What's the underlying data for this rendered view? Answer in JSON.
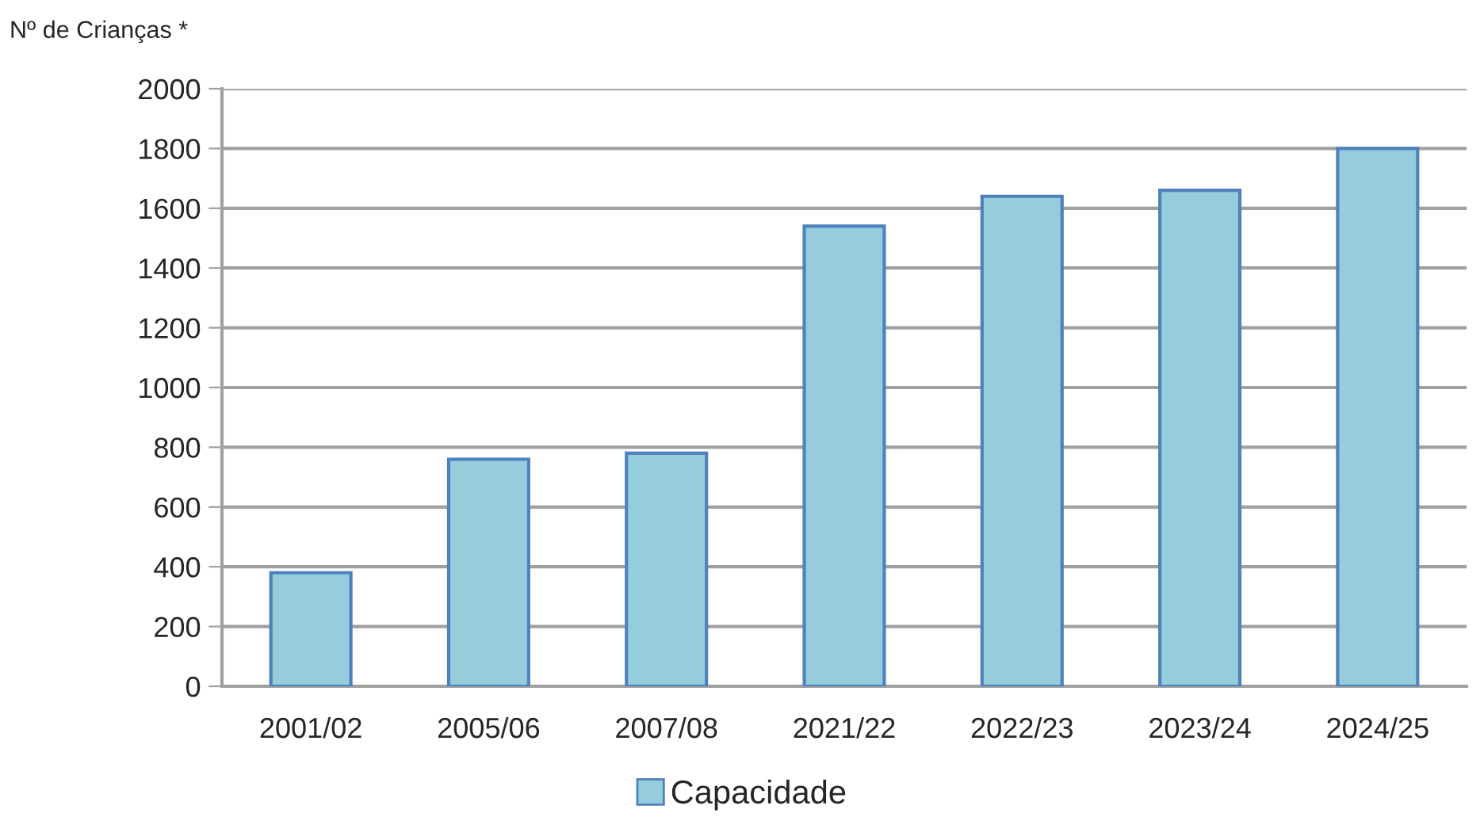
{
  "chart_data": {
    "type": "bar",
    "ylabel": "Nº de Crianças *",
    "categories": [
      "2001/02",
      "2005/06",
      "2007/08",
      "2021/22",
      "2022/23",
      "2023/24",
      "2024/25"
    ],
    "series": [
      {
        "name": "Capacidade",
        "color": "#95cddc",
        "values": [
          380,
          760,
          780,
          1540,
          1640,
          1660,
          1800
        ]
      }
    ],
    "ylim": [
      0,
      2000
    ],
    "yticks": [
      0,
      200,
      400,
      600,
      800,
      1000,
      1200,
      1400,
      1600,
      1800,
      2000
    ],
    "grid": "y",
    "legend": "bottom"
  }
}
